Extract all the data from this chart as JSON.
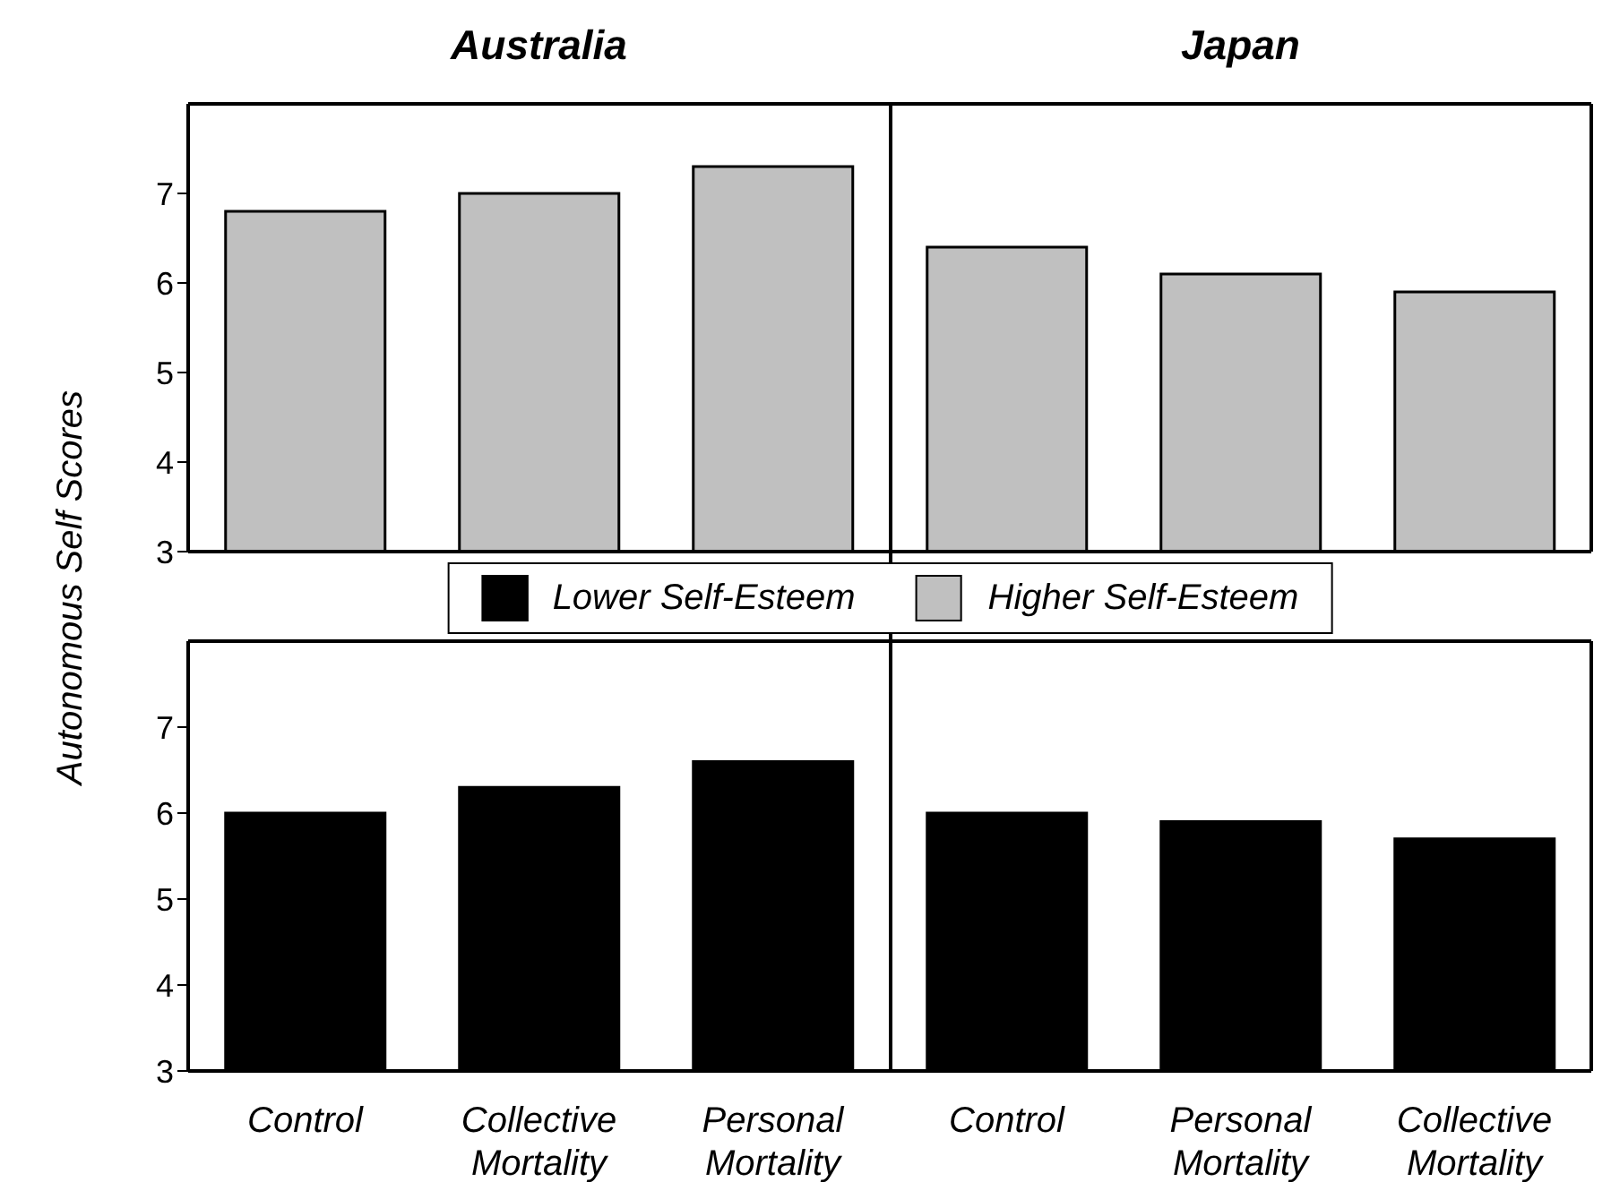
{
  "chart_data": [
    {
      "type": "bar",
      "ylabel": "Autonomous Self Scores",
      "annotations": [
        "Australia",
        "Japan"
      ],
      "categories": [
        null,
        null,
        null,
        null,
        null,
        null
      ],
      "series": [
        {
          "name": "Higher Self-Esteem",
          "color": "#c0c0c0",
          "values": [
            6.8,
            7.0,
            7.3,
            6.4,
            6.1,
            5.9
          ]
        }
      ],
      "ylim": [
        3,
        8
      ],
      "yticks": [
        3,
        4,
        5,
        6,
        7
      ],
      "tick_labels": "y",
      "legend": "bottom",
      "grid": false
    },
    {
      "type": "bar",
      "categories": [
        "Control",
        "Collective Mortality",
        "Personal Mortality",
        "Control",
        "Personal Mortality",
        "Collective Mortality"
      ],
      "series": [
        {
          "name": "Lower Self-Esteem",
          "color": "#000000",
          "values": [
            6.0,
            6.3,
            6.6,
            6.0,
            5.9,
            5.7
          ]
        }
      ],
      "ylim": [
        3,
        8
      ],
      "yticks": [
        3,
        4,
        5,
        6,
        7
      ],
      "legend": "top",
      "grid": false
    }
  ]
}
